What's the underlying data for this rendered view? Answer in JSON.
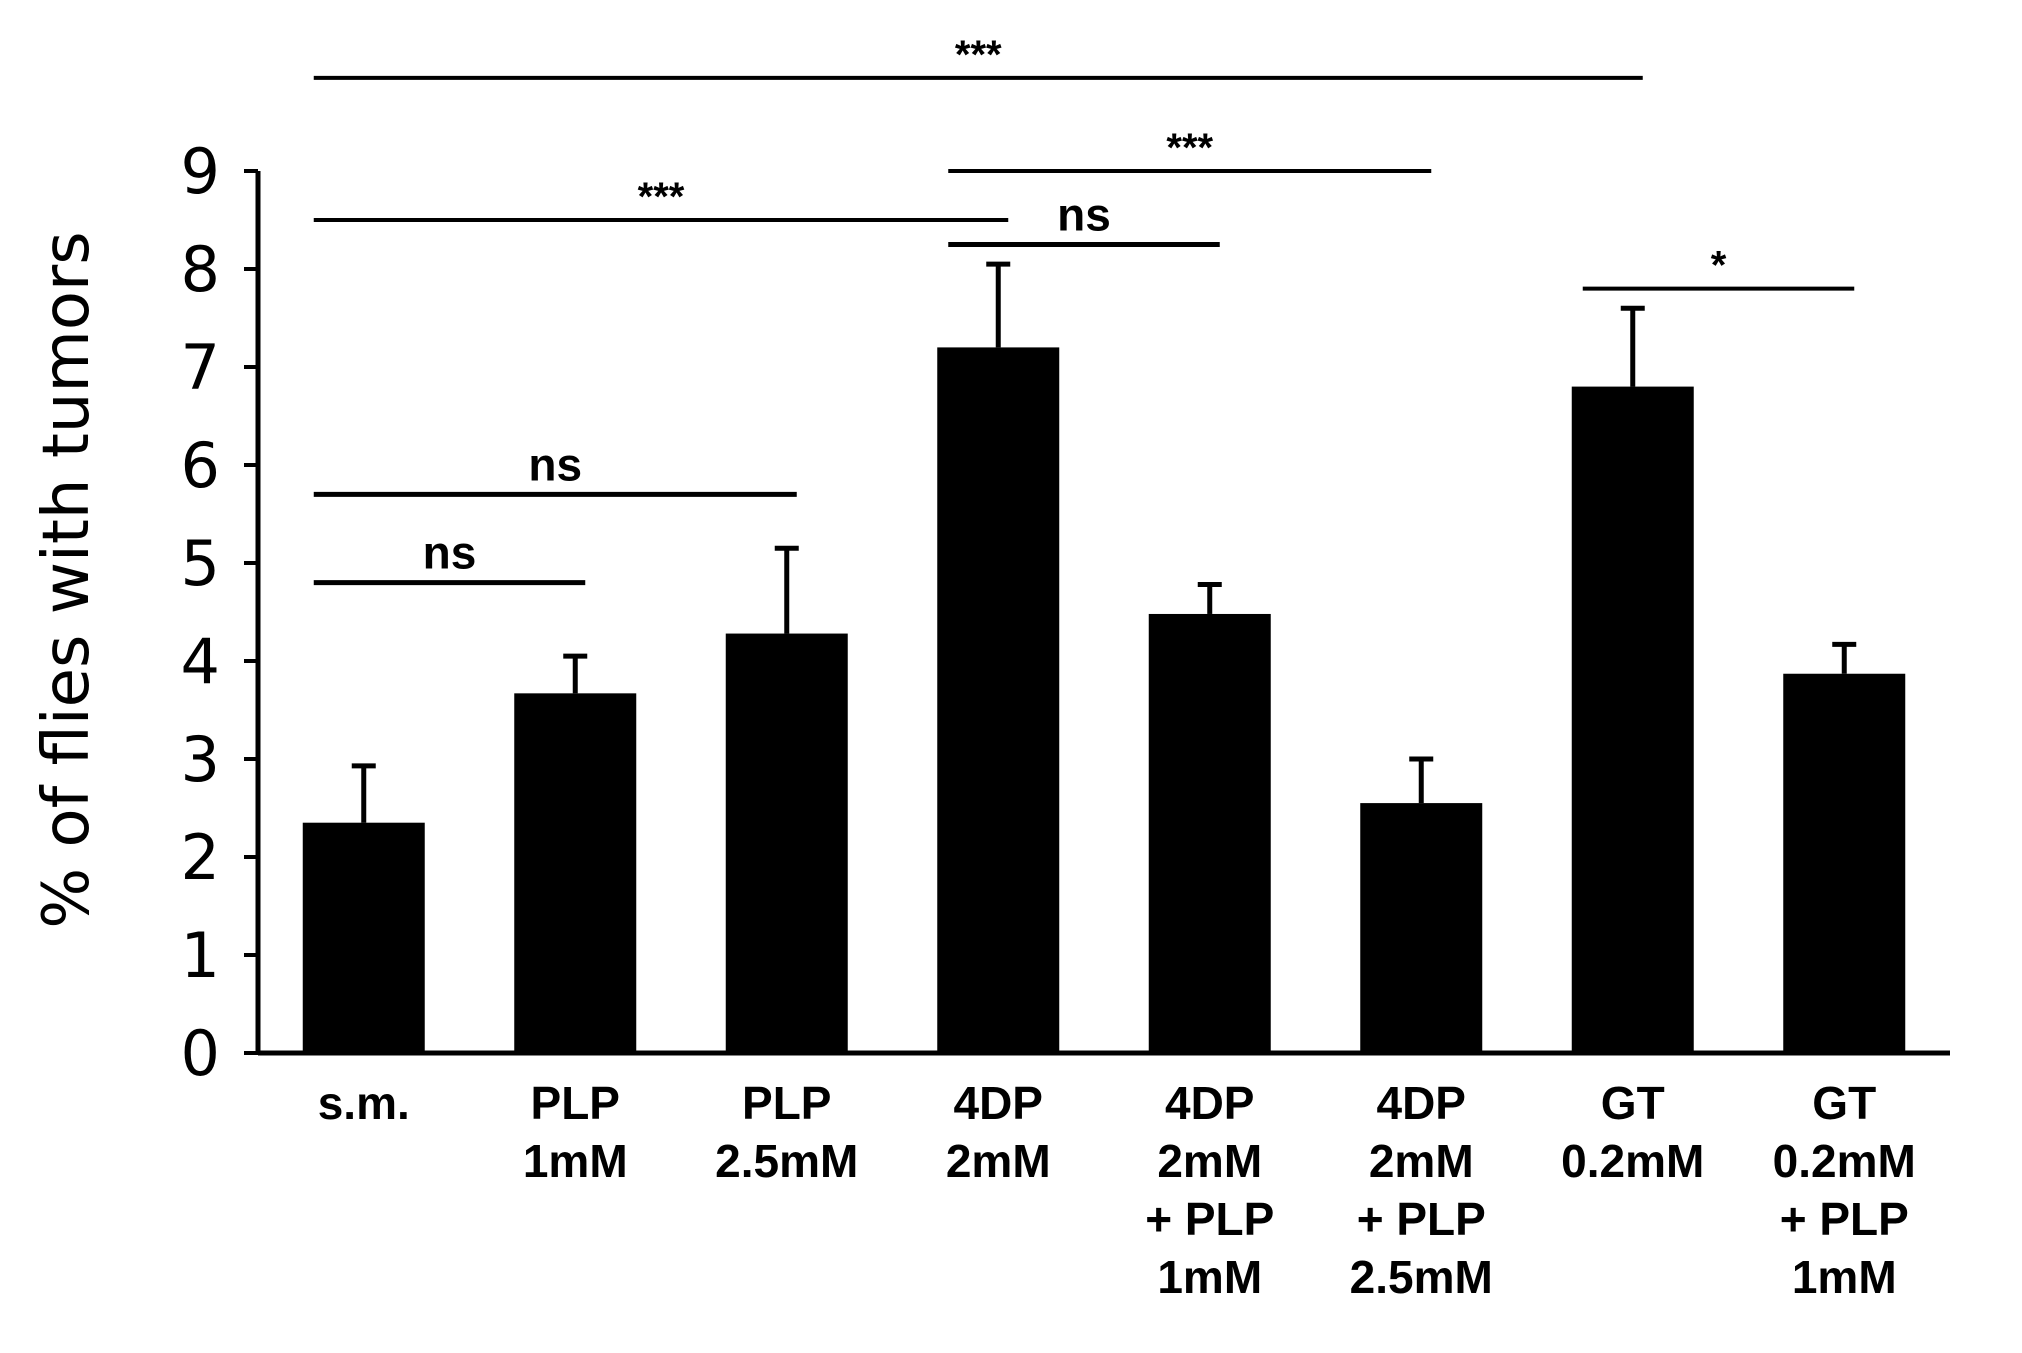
{
  "chart_data": {
    "type": "bar",
    "ylabel": "% of flies with tumors",
    "xlabel": "",
    "title": "",
    "ylim": [
      0,
      9
    ],
    "yticks": [
      "0",
      "1",
      "2",
      "3",
      "4",
      "5",
      "6",
      "7",
      "8",
      "9"
    ],
    "categories": [
      [
        "s.m."
      ],
      [
        "PLP",
        "1mM"
      ],
      [
        "PLP",
        "2.5mM"
      ],
      [
        "4DP",
        "2mM"
      ],
      [
        "4DP",
        "2mM",
        "+ PLP",
        "1mM"
      ],
      [
        "4DP",
        "2mM",
        "+ PLP",
        "2.5mM"
      ],
      [
        "GT",
        "0.2mM"
      ],
      [
        "GT",
        "0.2mM",
        "+ PLP",
        "1mM"
      ]
    ],
    "values": [
      2.35,
      3.67,
      4.28,
      7.2,
      4.48,
      2.55,
      6.8,
      3.87
    ],
    "errors": [
      0.58,
      0.38,
      0.87,
      0.85,
      0.3,
      0.45,
      0.8,
      0.3
    ],
    "color": "#000000",
    "significance": [
      {
        "from": 0,
        "to": 6,
        "label": "***",
        "level": 9.95
      },
      {
        "from": 3,
        "to": 5,
        "label": "***",
        "level": 9.0
      },
      {
        "from": 0,
        "to": 3,
        "label": "***",
        "level": 8.5
      },
      {
        "from": 3,
        "to": 4,
        "label": "ns",
        "level": 8.25
      },
      {
        "from": 6,
        "to": 7,
        "label": "*",
        "level": 7.8
      },
      {
        "from": 0,
        "to": 2,
        "label": "ns",
        "level": 5.7
      },
      {
        "from": 0,
        "to": 1,
        "label": "ns",
        "level": 4.8
      }
    ]
  }
}
